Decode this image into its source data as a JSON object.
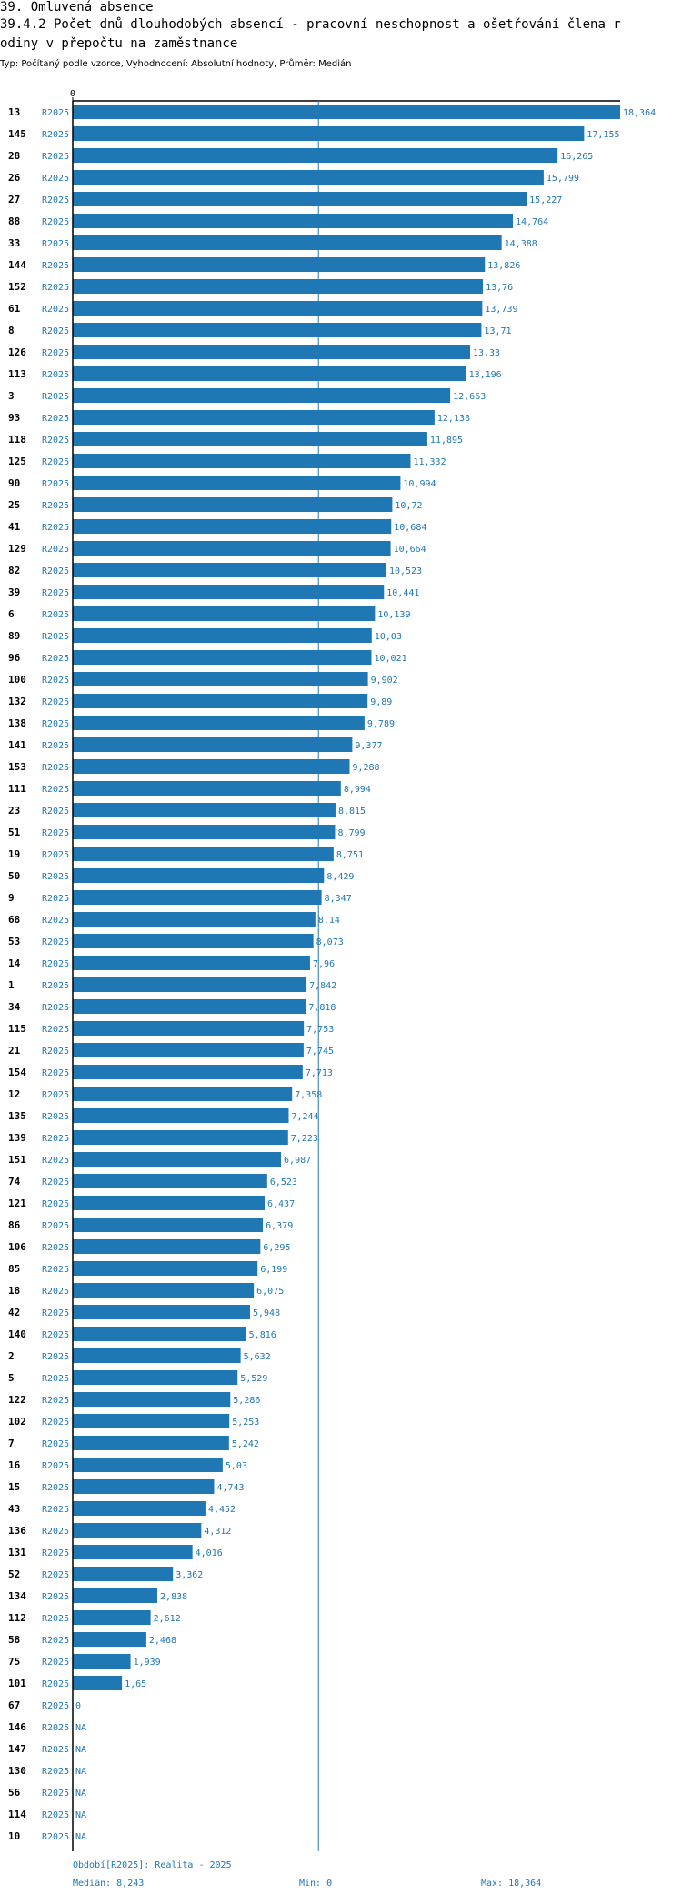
{
  "header": {
    "line1": "39. Omluvená absence",
    "line2": "39.4.2 Počet dnů dlouhodobých absencí - pracovní neschopnost a ošetřování člena r",
    "line3": "odiny v přepočtu na zaměstnance",
    "subtitle": "Typ: Počítaný podle vzorce, Vyhodnocení: Absolutní hodnoty, Průměr: Medián"
  },
  "footer": {
    "period": "Období[R2025]: Realita - 2025",
    "median": "Medián: 8,243",
    "min": "Min: 0",
    "max": "Max: 18,364"
  },
  "colors": {
    "bar": "#1f77b4",
    "label": "#1f77b4",
    "axis": "#000000",
    "median_line": "#1f77b4"
  },
  "chart_data": {
    "type": "bar",
    "orientation": "horizontal",
    "series_name": "R2025",
    "axis_zero_label": "0",
    "xlim": [
      0,
      18.364
    ],
    "median": 8.243,
    "rows": [
      {
        "id": "13",
        "series": "R2025",
        "value": 18.364,
        "label": "18,364"
      },
      {
        "id": "145",
        "series": "R2025",
        "value": 17.155,
        "label": "17,155"
      },
      {
        "id": "28",
        "series": "R2025",
        "value": 16.265,
        "label": "16,265"
      },
      {
        "id": "26",
        "series": "R2025",
        "value": 15.799,
        "label": "15,799"
      },
      {
        "id": "27",
        "series": "R2025",
        "value": 15.227,
        "label": "15,227"
      },
      {
        "id": "88",
        "series": "R2025",
        "value": 14.764,
        "label": "14,764"
      },
      {
        "id": "33",
        "series": "R2025",
        "value": 14.388,
        "label": "14,388"
      },
      {
        "id": "144",
        "series": "R2025",
        "value": 13.826,
        "label": "13,826"
      },
      {
        "id": "152",
        "series": "R2025",
        "value": 13.76,
        "label": "13,76"
      },
      {
        "id": "61",
        "series": "R2025",
        "value": 13.739,
        "label": "13,739"
      },
      {
        "id": "8",
        "series": "R2025",
        "value": 13.71,
        "label": "13,71"
      },
      {
        "id": "126",
        "series": "R2025",
        "value": 13.33,
        "label": "13,33"
      },
      {
        "id": "113",
        "series": "R2025",
        "value": 13.196,
        "label": "13,196"
      },
      {
        "id": "3",
        "series": "R2025",
        "value": 12.663,
        "label": "12,663"
      },
      {
        "id": "93",
        "series": "R2025",
        "value": 12.138,
        "label": "12,138"
      },
      {
        "id": "118",
        "series": "R2025",
        "value": 11.895,
        "label": "11,895"
      },
      {
        "id": "125",
        "series": "R2025",
        "value": 11.332,
        "label": "11,332"
      },
      {
        "id": "90",
        "series": "R2025",
        "value": 10.994,
        "label": "10,994"
      },
      {
        "id": "25",
        "series": "R2025",
        "value": 10.72,
        "label": "10,72"
      },
      {
        "id": "41",
        "series": "R2025",
        "value": 10.684,
        "label": "10,684"
      },
      {
        "id": "129",
        "series": "R2025",
        "value": 10.664,
        "label": "10,664"
      },
      {
        "id": "82",
        "series": "R2025",
        "value": 10.523,
        "label": "10,523"
      },
      {
        "id": "39",
        "series": "R2025",
        "value": 10.441,
        "label": "10,441"
      },
      {
        "id": "6",
        "series": "R2025",
        "value": 10.139,
        "label": "10,139"
      },
      {
        "id": "89",
        "series": "R2025",
        "value": 10.03,
        "label": "10,03"
      },
      {
        "id": "96",
        "series": "R2025",
        "value": 10.021,
        "label": "10,021"
      },
      {
        "id": "100",
        "series": "R2025",
        "value": 9.902,
        "label": "9,902"
      },
      {
        "id": "132",
        "series": "R2025",
        "value": 9.89,
        "label": "9,89"
      },
      {
        "id": "138",
        "series": "R2025",
        "value": 9.789,
        "label": "9,789"
      },
      {
        "id": "141",
        "series": "R2025",
        "value": 9.377,
        "label": "9,377"
      },
      {
        "id": "153",
        "series": "R2025",
        "value": 9.288,
        "label": "9,288"
      },
      {
        "id": "111",
        "series": "R2025",
        "value": 8.994,
        "label": "8,994"
      },
      {
        "id": "23",
        "series": "R2025",
        "value": 8.815,
        "label": "8,815"
      },
      {
        "id": "51",
        "series": "R2025",
        "value": 8.799,
        "label": "8,799"
      },
      {
        "id": "19",
        "series": "R2025",
        "value": 8.751,
        "label": "8,751"
      },
      {
        "id": "50",
        "series": "R2025",
        "value": 8.429,
        "label": "8,429"
      },
      {
        "id": "9",
        "series": "R2025",
        "value": 8.347,
        "label": "8,347"
      },
      {
        "id": "68",
        "series": "R2025",
        "value": 8.14,
        "label": "8,14"
      },
      {
        "id": "53",
        "series": "R2025",
        "value": 8.073,
        "label": "8,073"
      },
      {
        "id": "14",
        "series": "R2025",
        "value": 7.96,
        "label": "7,96"
      },
      {
        "id": "1",
        "series": "R2025",
        "value": 7.842,
        "label": "7,842"
      },
      {
        "id": "34",
        "series": "R2025",
        "value": 7.818,
        "label": "7,818"
      },
      {
        "id": "115",
        "series": "R2025",
        "value": 7.753,
        "label": "7,753"
      },
      {
        "id": "21",
        "series": "R2025",
        "value": 7.745,
        "label": "7,745"
      },
      {
        "id": "154",
        "series": "R2025",
        "value": 7.713,
        "label": "7,713"
      },
      {
        "id": "12",
        "series": "R2025",
        "value": 7.358,
        "label": "7,358"
      },
      {
        "id": "135",
        "series": "R2025",
        "value": 7.244,
        "label": "7,244"
      },
      {
        "id": "139",
        "series": "R2025",
        "value": 7.223,
        "label": "7,223"
      },
      {
        "id": "151",
        "series": "R2025",
        "value": 6.987,
        "label": "6,987"
      },
      {
        "id": "74",
        "series": "R2025",
        "value": 6.523,
        "label": "6,523"
      },
      {
        "id": "121",
        "series": "R2025",
        "value": 6.437,
        "label": "6,437"
      },
      {
        "id": "86",
        "series": "R2025",
        "value": 6.379,
        "label": "6,379"
      },
      {
        "id": "106",
        "series": "R2025",
        "value": 6.295,
        "label": "6,295"
      },
      {
        "id": "85",
        "series": "R2025",
        "value": 6.199,
        "label": "6,199"
      },
      {
        "id": "18",
        "series": "R2025",
        "value": 6.075,
        "label": "6,075"
      },
      {
        "id": "42",
        "series": "R2025",
        "value": 5.948,
        "label": "5,948"
      },
      {
        "id": "140",
        "series": "R2025",
        "value": 5.816,
        "label": "5,816"
      },
      {
        "id": "2",
        "series": "R2025",
        "value": 5.632,
        "label": "5,632"
      },
      {
        "id": "5",
        "series": "R2025",
        "value": 5.529,
        "label": "5,529"
      },
      {
        "id": "122",
        "series": "R2025",
        "value": 5.286,
        "label": "5,286"
      },
      {
        "id": "102",
        "series": "R2025",
        "value": 5.253,
        "label": "5,253"
      },
      {
        "id": "7",
        "series": "R2025",
        "value": 5.242,
        "label": "5,242"
      },
      {
        "id": "16",
        "series": "R2025",
        "value": 5.03,
        "label": "5,03"
      },
      {
        "id": "15",
        "series": "R2025",
        "value": 4.743,
        "label": "4,743"
      },
      {
        "id": "43",
        "series": "R2025",
        "value": 4.452,
        "label": "4,452"
      },
      {
        "id": "136",
        "series": "R2025",
        "value": 4.312,
        "label": "4,312"
      },
      {
        "id": "131",
        "series": "R2025",
        "value": 4.016,
        "label": "4,016"
      },
      {
        "id": "52",
        "series": "R2025",
        "value": 3.362,
        "label": "3,362"
      },
      {
        "id": "134",
        "series": "R2025",
        "value": 2.838,
        "label": "2,838"
      },
      {
        "id": "112",
        "series": "R2025",
        "value": 2.612,
        "label": "2,612"
      },
      {
        "id": "58",
        "series": "R2025",
        "value": 2.468,
        "label": "2,468"
      },
      {
        "id": "75",
        "series": "R2025",
        "value": 1.939,
        "label": "1,939"
      },
      {
        "id": "101",
        "series": "R2025",
        "value": 1.65,
        "label": "1,65"
      },
      {
        "id": "67",
        "series": "R2025",
        "value": 0,
        "label": "0"
      },
      {
        "id": "146",
        "series": "R2025",
        "value": null,
        "label": "NA"
      },
      {
        "id": "147",
        "series": "R2025",
        "value": null,
        "label": "NA"
      },
      {
        "id": "130",
        "series": "R2025",
        "value": null,
        "label": "NA"
      },
      {
        "id": "56",
        "series": "R2025",
        "value": null,
        "label": "NA"
      },
      {
        "id": "114",
        "series": "R2025",
        "value": null,
        "label": "NA"
      },
      {
        "id": "10",
        "series": "R2025",
        "value": null,
        "label": "NA"
      }
    ]
  }
}
